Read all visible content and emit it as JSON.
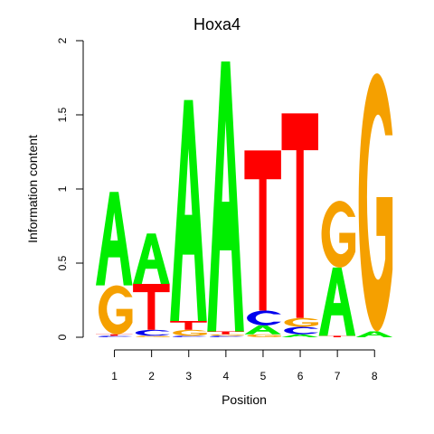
{
  "chart_data": {
    "type": "sequence-logo",
    "title": "Hoxa4",
    "xlabel": "Position",
    "ylabel": "Information content",
    "ylim": [
      0,
      2
    ],
    "y_ticks": [
      "0",
      "0.5",
      "1",
      "1.5",
      "2"
    ],
    "x_ticks": [
      "1",
      "2",
      "3",
      "4",
      "5",
      "6",
      "7",
      "8"
    ],
    "colors": {
      "A": "#00ee00",
      "C": "#0000ee",
      "G": "#f5a000",
      "T": "#ff0000"
    },
    "positions": [
      {
        "position": "1",
        "letters": [
          {
            "base": "C",
            "bits": 0.01
          },
          {
            "base": "T",
            "bits": 0.01
          },
          {
            "base": "G",
            "bits": 0.33
          },
          {
            "base": "A",
            "bits": 0.63
          }
        ]
      },
      {
        "position": "2",
        "letters": [
          {
            "base": "G",
            "bits": 0.01
          },
          {
            "base": "C",
            "bits": 0.04
          },
          {
            "base": "T",
            "bits": 0.31
          },
          {
            "base": "A",
            "bits": 0.34
          }
        ]
      },
      {
        "position": "3",
        "letters": [
          {
            "base": "C",
            "bits": 0.01
          },
          {
            "base": "G",
            "bits": 0.04
          },
          {
            "base": "T",
            "bits": 0.06
          },
          {
            "base": "A",
            "bits": 1.49
          }
        ]
      },
      {
        "position": "4",
        "letters": [
          {
            "base": "C",
            "bits": 0.01
          },
          {
            "base": "G",
            "bits": 0.01
          },
          {
            "base": "T",
            "bits": 0.02
          },
          {
            "base": "A",
            "bits": 1.82
          }
        ]
      },
      {
        "position": "5",
        "letters": [
          {
            "base": "G",
            "bits": 0.02
          },
          {
            "base": "A",
            "bits": 0.06
          },
          {
            "base": "C",
            "bits": 0.1
          },
          {
            "base": "T",
            "bits": 1.08
          }
        ]
      },
      {
        "position": "6",
        "letters": [
          {
            "base": "A",
            "bits": 0.02
          },
          {
            "base": "C",
            "bits": 0.05
          },
          {
            "base": "G",
            "bits": 0.06
          },
          {
            "base": "T",
            "bits": 1.38
          }
        ]
      },
      {
        "position": "7",
        "letters": [
          {
            "base": "T",
            "bits": 0.01
          },
          {
            "base": "A",
            "bits": 0.46
          },
          {
            "base": "G",
            "bits": 0.45
          }
        ]
      },
      {
        "position": "8",
        "letters": [
          {
            "base": "A",
            "bits": 0.04
          },
          {
            "base": "G",
            "bits": 1.74
          }
        ]
      }
    ]
  }
}
